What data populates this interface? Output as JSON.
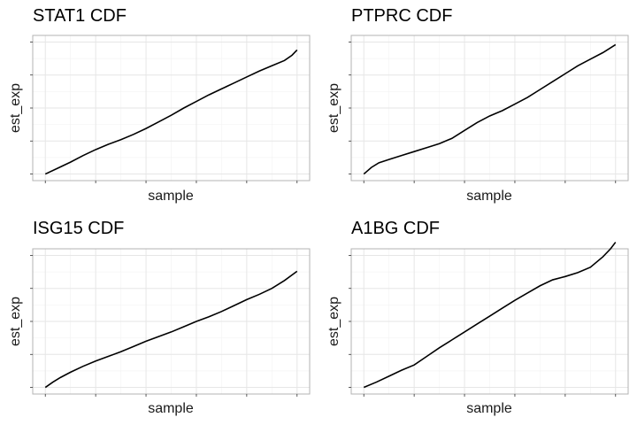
{
  "chart_data": [
    {
      "type": "line",
      "title": "STAT1 CDF",
      "xlabel": "sample",
      "ylabel": "est_exp",
      "grid": true,
      "tick_labels_shown": false,
      "xlim": [
        -0.05,
        1.05
      ],
      "ylim": [
        -0.05,
        1.05
      ],
      "x_ticks": [
        0,
        0.2,
        0.4,
        0.6,
        0.8,
        1.0
      ],
      "y_ticks": [
        0,
        0.25,
        0.5,
        0.75,
        1.0
      ],
      "series": [
        {
          "color": "#000000",
          "x": [
            0,
            0.05,
            0.1,
            0.15,
            0.2,
            0.25,
            0.3,
            0.35,
            0.4,
            0.45,
            0.5,
            0.55,
            0.6,
            0.65,
            0.7,
            0.75,
            0.8,
            0.85,
            0.9,
            0.95,
            0.98,
            1.0
          ],
          "y": [
            0,
            0.045,
            0.09,
            0.14,
            0.185,
            0.225,
            0.26,
            0.3,
            0.345,
            0.395,
            0.445,
            0.5,
            0.55,
            0.6,
            0.645,
            0.69,
            0.735,
            0.78,
            0.82,
            0.86,
            0.9,
            0.94
          ]
        }
      ]
    },
    {
      "type": "line",
      "title": "PTPRC CDF",
      "xlabel": "sample",
      "ylabel": "est_exp",
      "grid": true,
      "tick_labels_shown": false,
      "xlim": [
        -0.05,
        1.05
      ],
      "ylim": [
        -0.05,
        1.05
      ],
      "x_ticks": [
        0,
        0.2,
        0.4,
        0.6,
        0.8,
        1.0
      ],
      "y_ticks": [
        0,
        0.25,
        0.5,
        0.75,
        1.0
      ],
      "series": [
        {
          "color": "#000000",
          "x": [
            0,
            0.03,
            0.06,
            0.1,
            0.15,
            0.2,
            0.25,
            0.3,
            0.35,
            0.4,
            0.45,
            0.5,
            0.55,
            0.6,
            0.65,
            0.7,
            0.75,
            0.8,
            0.85,
            0.9,
            0.95,
            1.0
          ],
          "y": [
            0,
            0.05,
            0.085,
            0.11,
            0.14,
            0.17,
            0.2,
            0.23,
            0.27,
            0.33,
            0.39,
            0.44,
            0.48,
            0.53,
            0.58,
            0.64,
            0.7,
            0.76,
            0.82,
            0.87,
            0.92,
            0.98
          ]
        }
      ]
    },
    {
      "type": "line",
      "title": "ISG15 CDF",
      "xlabel": "sample",
      "ylabel": "est_exp",
      "grid": true,
      "tick_labels_shown": false,
      "xlim": [
        -0.05,
        1.05
      ],
      "ylim": [
        -0.05,
        1.05
      ],
      "x_ticks": [
        0,
        0.2,
        0.4,
        0.6,
        0.8,
        1.0
      ],
      "y_ticks": [
        0,
        0.25,
        0.5,
        0.75,
        1.0
      ],
      "series": [
        {
          "color": "#000000",
          "x": [
            0,
            0.03,
            0.06,
            0.1,
            0.15,
            0.2,
            0.25,
            0.3,
            0.35,
            0.4,
            0.45,
            0.5,
            0.55,
            0.6,
            0.65,
            0.7,
            0.75,
            0.8,
            0.85,
            0.9,
            0.95,
            1.0
          ],
          "y": [
            0,
            0.04,
            0.075,
            0.115,
            0.16,
            0.2,
            0.235,
            0.27,
            0.31,
            0.35,
            0.385,
            0.42,
            0.46,
            0.5,
            0.535,
            0.575,
            0.62,
            0.665,
            0.705,
            0.75,
            0.81,
            0.88
          ]
        }
      ]
    },
    {
      "type": "line",
      "title": "A1BG CDF",
      "xlabel": "sample",
      "ylabel": "est_exp",
      "grid": true,
      "tick_labels_shown": false,
      "xlim": [
        -0.05,
        1.05
      ],
      "ylim": [
        -0.05,
        1.05
      ],
      "x_ticks": [
        0,
        0.2,
        0.4,
        0.6,
        0.8,
        1.0
      ],
      "y_ticks": [
        0,
        0.25,
        0.5,
        0.75,
        1.0
      ],
      "series": [
        {
          "color": "#000000",
          "x": [
            0,
            0.05,
            0.1,
            0.15,
            0.2,
            0.25,
            0.3,
            0.35,
            0.4,
            0.45,
            0.5,
            0.55,
            0.6,
            0.65,
            0.7,
            0.75,
            0.8,
            0.85,
            0.9,
            0.95,
            0.98,
            1.0
          ],
          "y": [
            0,
            0.04,
            0.085,
            0.13,
            0.17,
            0.235,
            0.3,
            0.36,
            0.42,
            0.48,
            0.54,
            0.6,
            0.66,
            0.715,
            0.77,
            0.815,
            0.84,
            0.87,
            0.91,
            0.99,
            1.05,
            1.1
          ]
        }
      ]
    }
  ]
}
